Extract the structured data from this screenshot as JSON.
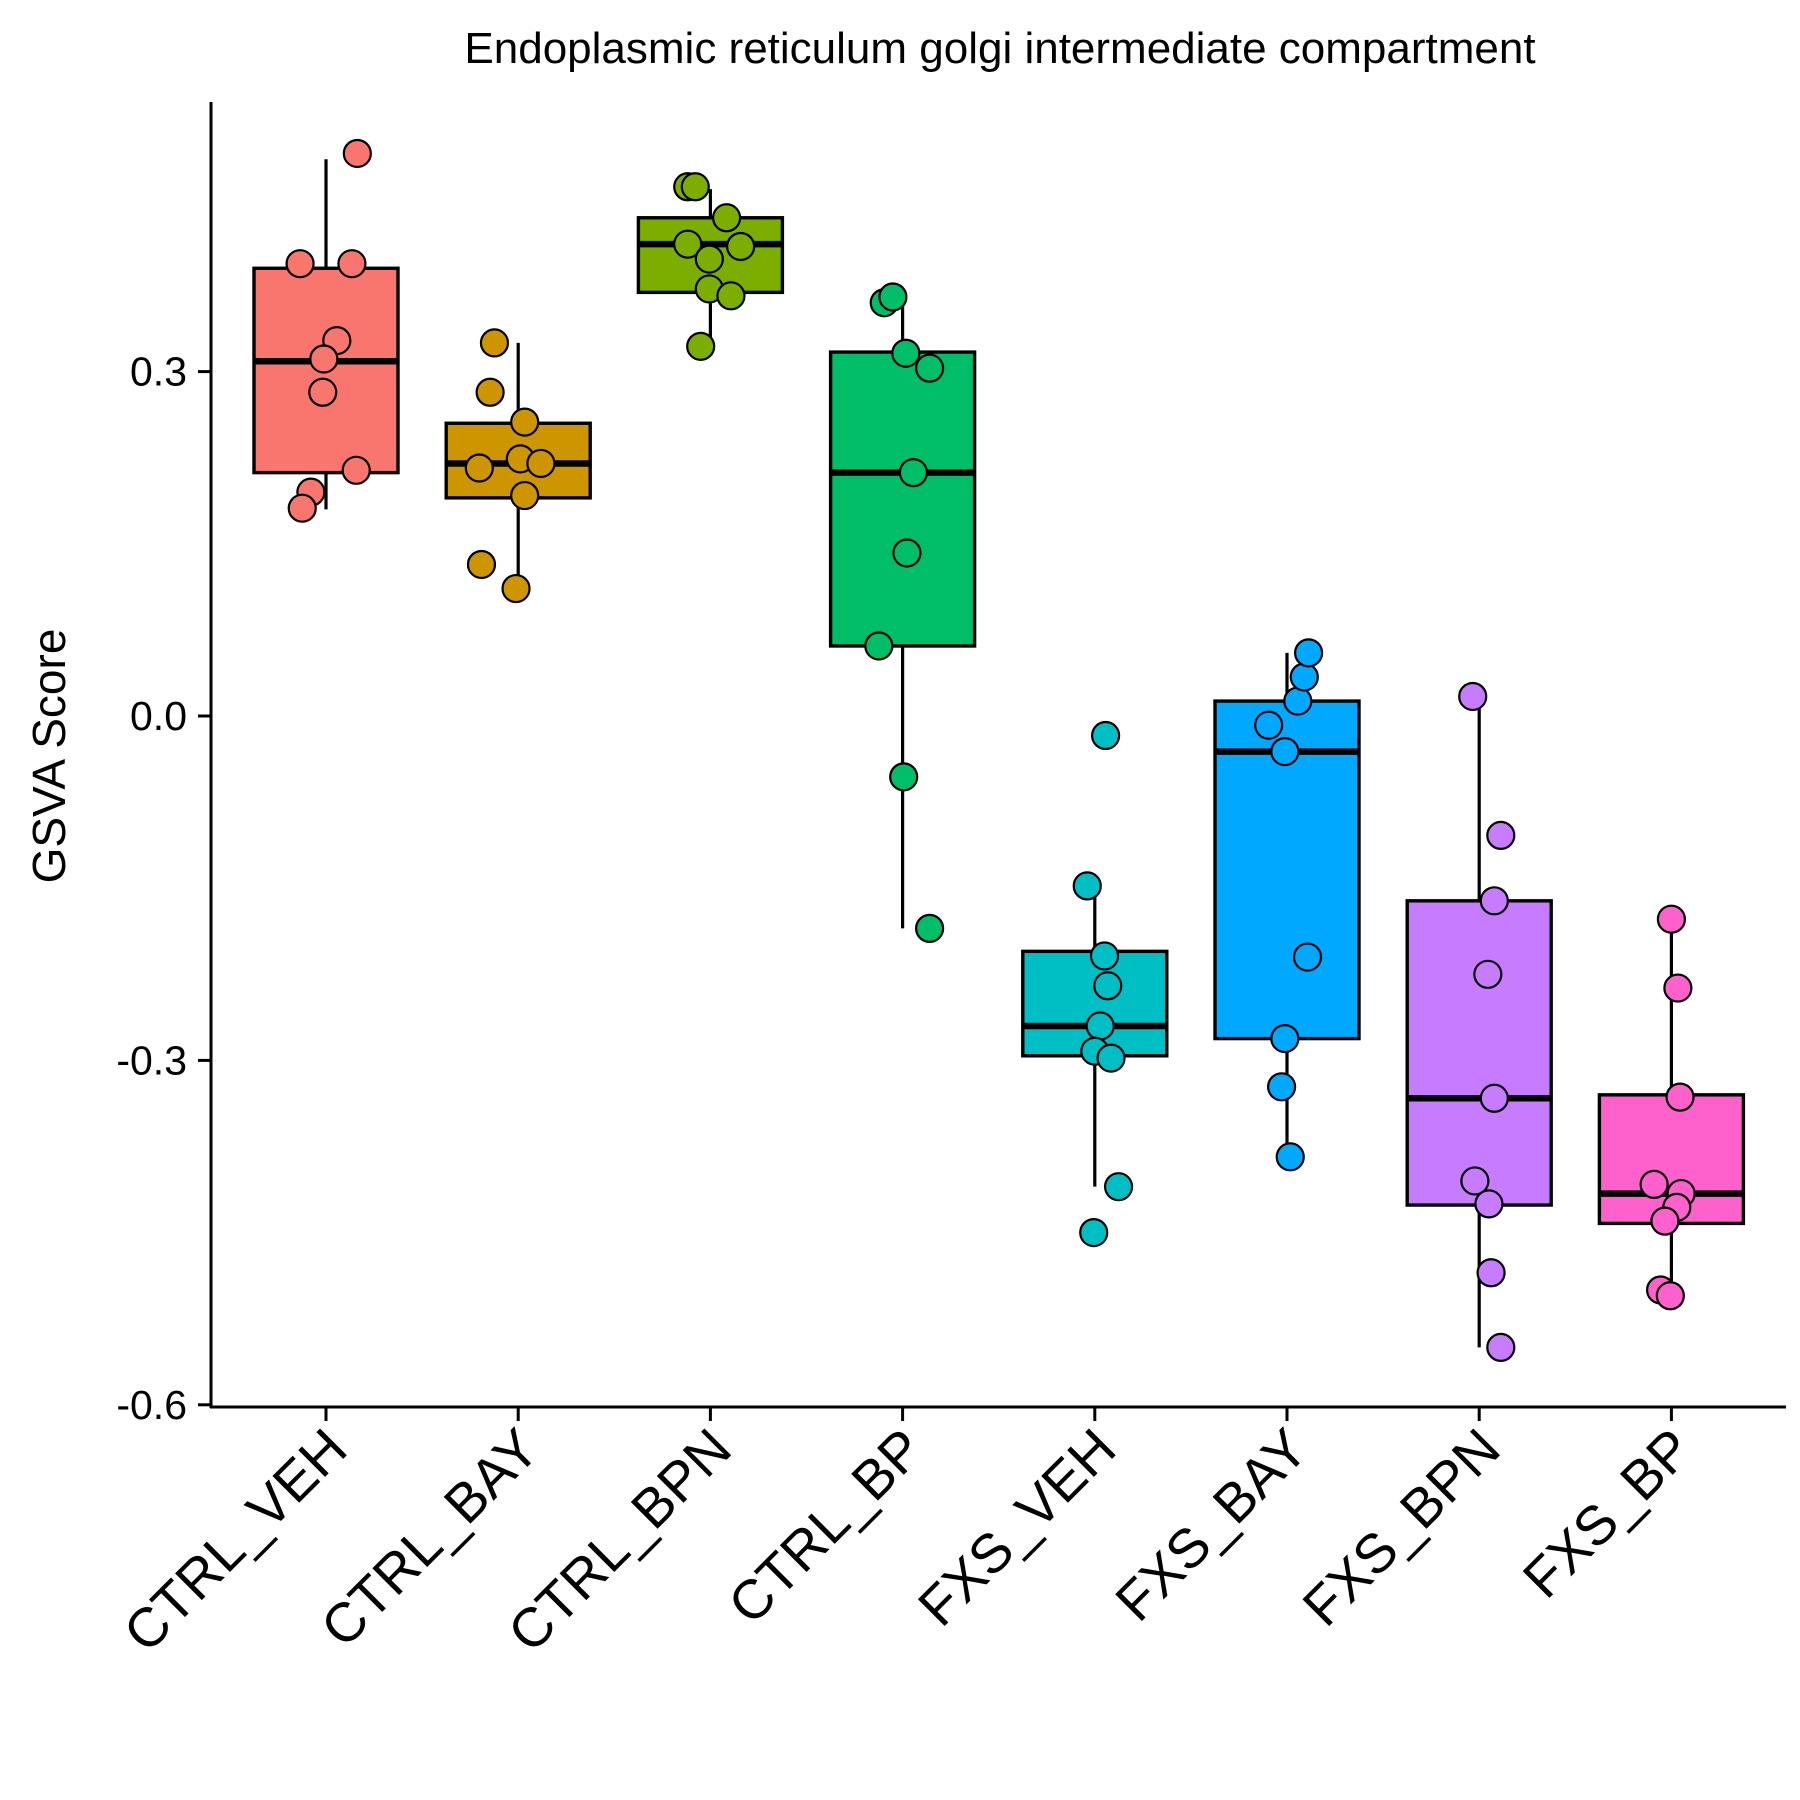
{
  "chart_data": {
    "type": "box",
    "title": "Endoplasmic reticulum golgi intermediate compartment",
    "xlabel": "",
    "ylabel": "GSVA Score",
    "ylim": [
      -0.6,
      0.55
    ],
    "yticks": [
      "0.3",
      "0.0",
      "-0.3",
      "-0.6"
    ],
    "ytick_values": [
      0.3,
      0.0,
      -0.3,
      -0.6
    ],
    "grid": false,
    "legend": "none",
    "categories": [
      "CTRL_VEH",
      "CTRL_BAY",
      "CTRL_BPN",
      "CTRL_BP",
      "FXS_VEH",
      "FXS_BAY",
      "FXS_BPN",
      "FXS_BP"
    ],
    "colors": [
      "#F8766D",
      "#CD9600",
      "#7CAE00",
      "#00BE67",
      "#00BFC4",
      "#00A9FF",
      "#C77CFF",
      "#FF61CC"
    ],
    "boxes": [
      {
        "group": "CTRL_VEH",
        "whisker_low": 0.18,
        "q1": 0.212,
        "median": 0.309,
        "q3": 0.39,
        "whisker_high": 0.485
      },
      {
        "group": "CTRL_BAY",
        "whisker_low": 0.11,
        "q1": 0.19,
        "median": 0.22,
        "q3": 0.255,
        "whisker_high": 0.325
      },
      {
        "group": "CTRL_BPN",
        "whisker_low": 0.32,
        "q1": 0.369,
        "median": 0.411,
        "q3": 0.434,
        "whisker_high": 0.459
      },
      {
        "group": "CTRL_BP",
        "whisker_low": -0.185,
        "q1": 0.061,
        "median": 0.212,
        "q3": 0.317,
        "whisker_high": 0.365
      },
      {
        "group": "FXS_VEH",
        "whisker_low": -0.41,
        "q1": -0.296,
        "median": -0.27,
        "q3": -0.205,
        "whisker_high": -0.148
      },
      {
        "group": "FXS_BAY",
        "whisker_low": -0.384,
        "q1": -0.281,
        "median": -0.031,
        "q3": 0.013,
        "whisker_high": 0.055
      },
      {
        "group": "FXS_BPN",
        "whisker_low": -0.55,
        "q1": -0.426,
        "median": -0.333,
        "q3": -0.161,
        "whisker_high": 0.017
      },
      {
        "group": "FXS_BP",
        "whisker_low": -0.505,
        "q1": -0.442,
        "median": -0.416,
        "q3": -0.33,
        "whisker_high": -0.177
      }
    ],
    "points": [
      [
        [
          0.29,
          0.49
        ],
        [
          -0.24,
          0.394
        ],
        [
          0.24,
          0.394
        ],
        [
          0.1,
          0.327
        ],
        [
          -0.02,
          0.311
        ],
        [
          -0.03,
          0.282
        ],
        [
          0.28,
          0.214
        ],
        [
          -0.14,
          0.195
        ],
        [
          -0.22,
          0.181
        ]
      ],
      [
        [
          -0.22,
          0.325
        ],
        [
          -0.26,
          0.282
        ],
        [
          0.06,
          0.256
        ],
        [
          0.02,
          0.224
        ],
        [
          -0.36,
          0.216
        ],
        [
          0.21,
          0.22
        ],
        [
          0.06,
          0.192
        ],
        [
          -0.34,
          0.132
        ],
        [
          -0.02,
          0.111
        ]
      ],
      [
        [
          -0.21,
          0.461
        ],
        [
          -0.14,
          0.461
        ],
        [
          0.15,
          0.434
        ],
        [
          -0.21,
          0.411
        ],
        [
          0.28,
          0.409
        ],
        [
          -0.01,
          0.398
        ],
        [
          -0.01,
          0.372
        ],
        [
          0.19,
          0.366
        ],
        [
          -0.09,
          0.322
        ]
      ],
      [
        [
          -0.17,
          0.36
        ],
        [
          -0.09,
          0.365
        ],
        [
          0.03,
          0.316
        ],
        [
          0.25,
          0.303
        ],
        [
          0.1,
          0.212
        ],
        [
          0.04,
          0.142
        ],
        [
          -0.22,
          0.061
        ],
        [
          0.01,
          -0.053
        ],
        [
          0.25,
          -0.185
        ]
      ],
      [
        [
          0.1,
          -0.017
        ],
        [
          -0.07,
          -0.148
        ],
        [
          0.09,
          -0.209
        ],
        [
          0.12,
          -0.235
        ],
        [
          0.05,
          -0.27
        ],
        [
          0.0,
          -0.292
        ],
        [
          0.15,
          -0.298
        ],
        [
          0.22,
          -0.41
        ],
        [
          -0.01,
          -0.45
        ]
      ],
      [
        [
          -0.17,
          -0.008
        ],
        [
          0.1,
          0.013
        ],
        [
          0.16,
          0.034
        ],
        [
          0.2,
          0.055
        ],
        [
          -0.02,
          -0.031
        ],
        [
          0.19,
          -0.21
        ],
        [
          -0.02,
          -0.281
        ],
        [
          -0.05,
          -0.323
        ],
        [
          0.03,
          -0.384
        ]
      ],
      [
        [
          -0.06,
          0.017
        ],
        [
          0.2,
          -0.104
        ],
        [
          0.14,
          -0.161
        ],
        [
          0.08,
          -0.225
        ],
        [
          0.14,
          -0.333
        ],
        [
          -0.04,
          -0.405
        ],
        [
          0.09,
          -0.425
        ],
        [
          0.11,
          -0.485
        ],
        [
          0.2,
          -0.55
        ]
      ],
      [
        [
          0.0,
          -0.177
        ],
        [
          0.06,
          -0.237
        ],
        [
          0.08,
          -0.332
        ],
        [
          -0.16,
          -0.408
        ],
        [
          0.09,
          -0.416
        ],
        [
          0.05,
          -0.428
        ],
        [
          -0.06,
          -0.44
        ],
        [
          -0.1,
          -0.5
        ],
        [
          -0.01,
          -0.505
        ]
      ]
    ]
  }
}
